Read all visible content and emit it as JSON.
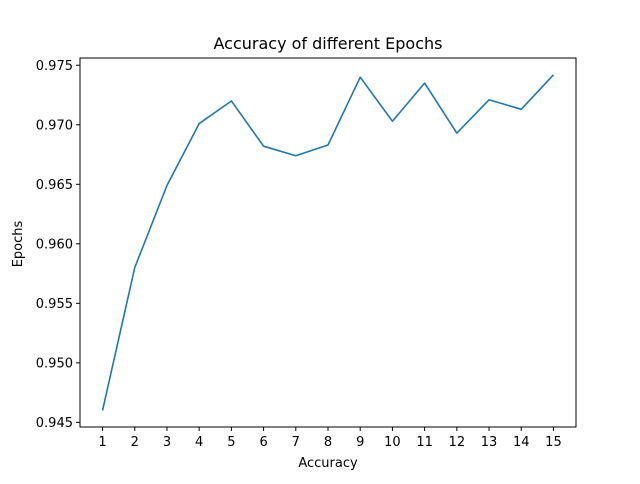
{
  "chart_data": {
    "type": "line",
    "title": "Accuracy of different Epochs",
    "xlabel": "Accuracy",
    "ylabel": "Epochs",
    "x": [
      1,
      2,
      3,
      4,
      5,
      6,
      7,
      8,
      9,
      10,
      11,
      12,
      13,
      14,
      15
    ],
    "series": [
      {
        "values": [
          0.946,
          0.958,
          0.9649,
          0.9701,
          0.972,
          0.9682,
          0.9674,
          0.9683,
          0.974,
          0.9703,
          0.9735,
          0.9693,
          0.9721,
          0.9713,
          0.9742
        ],
        "color": "#1f77b4"
      }
    ],
    "xticks": [
      "1",
      "2",
      "3",
      "4",
      "5",
      "6",
      "7",
      "8",
      "9",
      "10",
      "11",
      "12",
      "13",
      "14",
      "15"
    ],
    "yticks": [
      "0.945",
      "0.950",
      "0.955",
      "0.960",
      "0.965",
      "0.970",
      "0.975"
    ],
    "xlim": [
      0.3,
      15.7
    ],
    "ylim": [
      0.94461,
      0.97561
    ],
    "grid": false,
    "legend": "none"
  }
}
